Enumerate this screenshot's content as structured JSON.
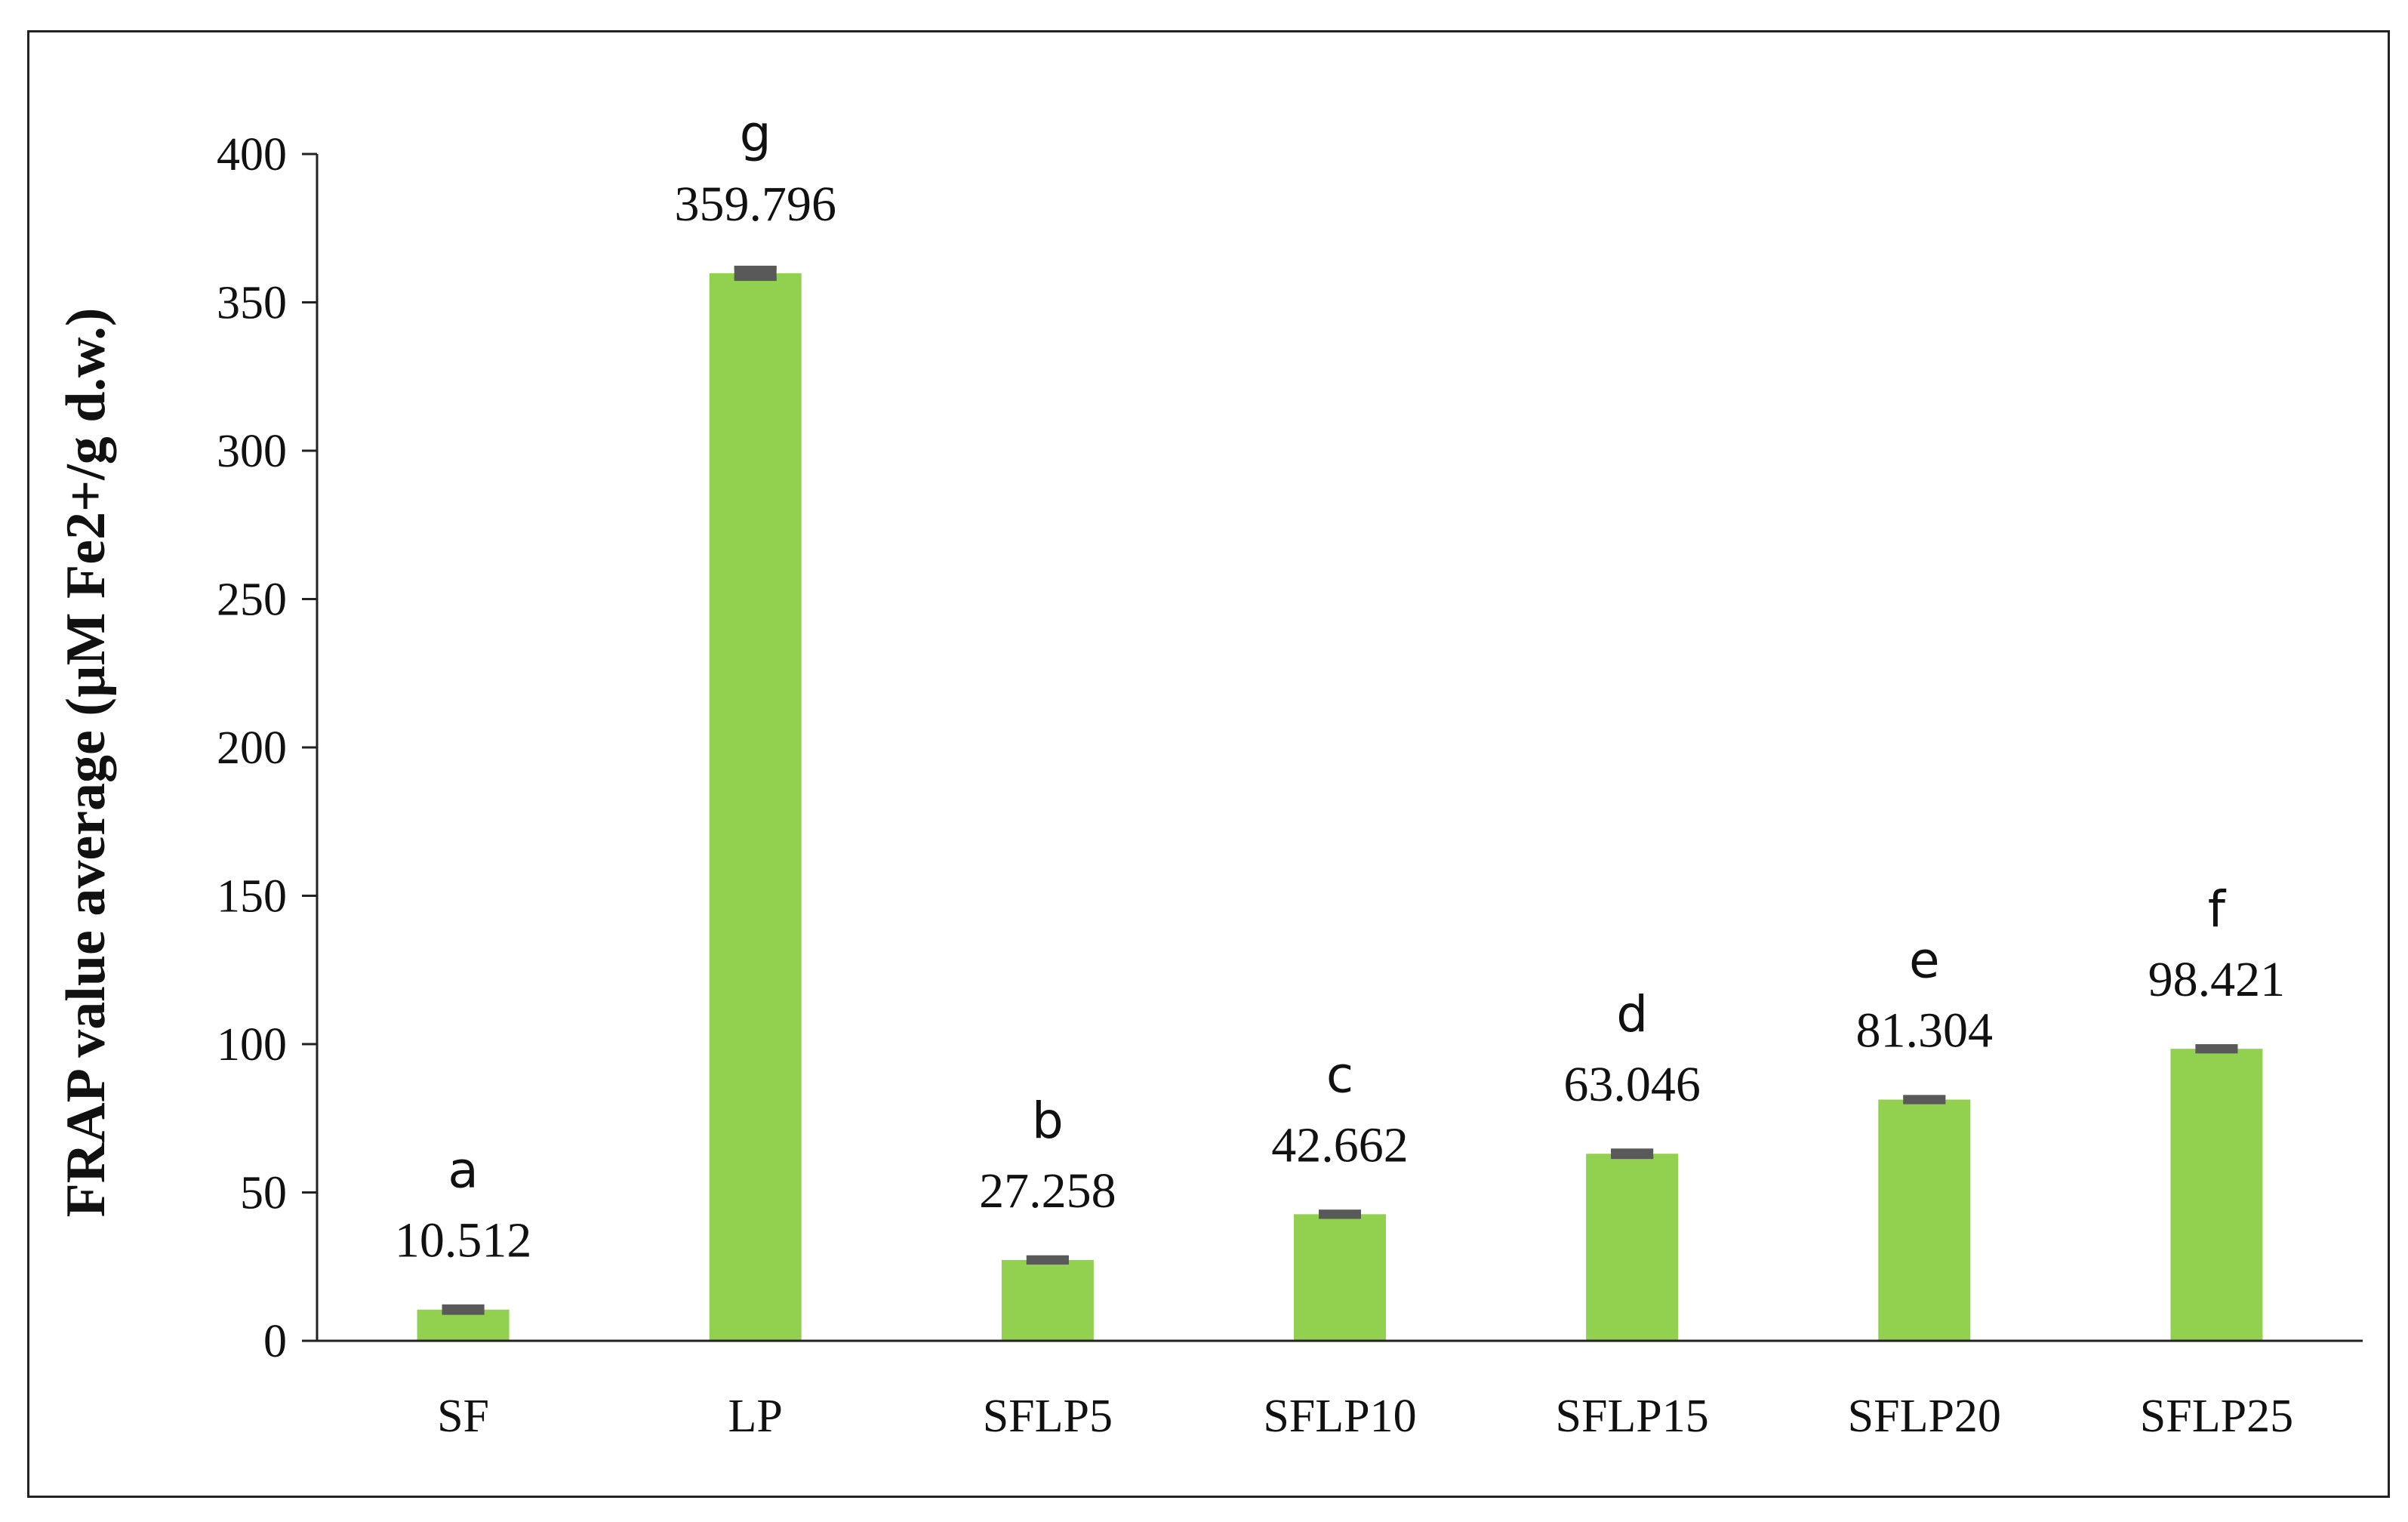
{
  "chart_data": {
    "type": "bar",
    "categories": [
      "SF",
      "LP",
      "SFLP5",
      "SFLP10",
      "SFLP15",
      "SFLP20",
      "SFLP25"
    ],
    "values": [
      10.512,
      359.796,
      27.258,
      42.662,
      63.046,
      81.304,
      98.421
    ],
    "value_labels": [
      "10.512",
      "359.796",
      "27.258",
      "42.662",
      "63.046",
      "81.304",
      "98.421"
    ],
    "significance_letters": [
      "a",
      "g",
      "b",
      "c",
      "d",
      "e",
      "f"
    ],
    "error_bars": [
      1.0,
      1.8,
      0.8,
      0.8,
      1.0,
      0.8,
      0.8
    ],
    "title": "",
    "xlabel": "",
    "ylabel": "FRAP value average (µM Fe2+/g d.w.)",
    "ylim": [
      0,
      400
    ],
    "yticks": [
      0,
      50,
      100,
      150,
      200,
      250,
      300,
      350,
      400
    ],
    "grid": false,
    "bar_color": "#92d050",
    "error_bar_color": "#595959"
  }
}
